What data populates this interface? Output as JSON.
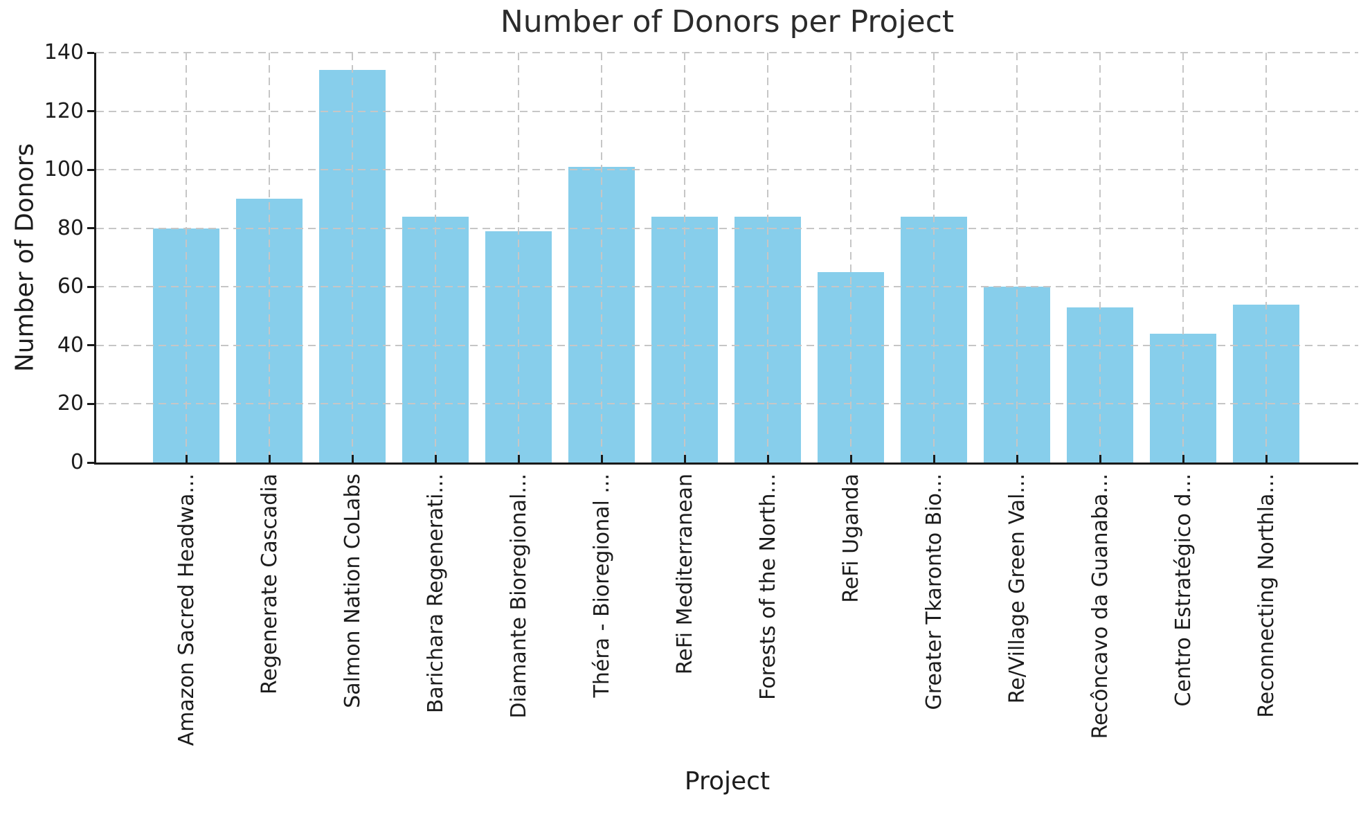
{
  "chart_data": {
    "type": "bar",
    "title": "Number of Donors per Project",
    "xlabel": "Project",
    "ylabel": "Number of Donors",
    "categories": [
      "Amazon Sacred Headwa...",
      "Regenerate Cascadia",
      "Salmon Nation CoLabs",
      "Barichara Regenerati...",
      "Diamante Bioregional...",
      "Théra - Bioregional ...",
      "ReFi Mediterranean",
      "Forests of the North...",
      "ReFi Uganda",
      "Greater Tkaronto Bio...",
      "Re/Village Green Val...",
      "Recôncavo da Guanaba...",
      "Centro Estratégico d...",
      "Reconnecting Northla..."
    ],
    "values": [
      80,
      90,
      134,
      84,
      79,
      101,
      84,
      84,
      65,
      84,
      60,
      53,
      44,
      54
    ],
    "ylim": [
      0,
      140
    ],
    "yticks": [
      0,
      20,
      40,
      60,
      80,
      100,
      120,
      140
    ],
    "grid": true,
    "grid_linestyle": "dashed",
    "legend": "none",
    "colors": {
      "bar_fill": "#87CEEB",
      "grid": "#c6c6c6",
      "axis": "#1a1a1a",
      "text": "#1c1c1c",
      "background": "#ffffff"
    }
  }
}
